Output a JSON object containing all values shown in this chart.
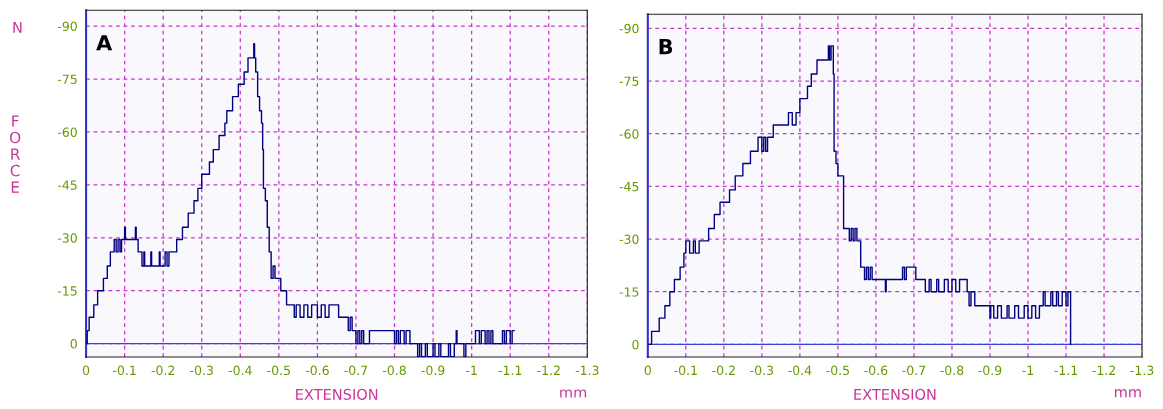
{
  "chart_data": [
    {
      "type": "step",
      "ylabel": "FORCE",
      "xlabel": "EXTENSION",
      "annotations": [
        "A",
        "mm",
        "N"
      ],
      "xlim": [
        0,
        -1.3
      ],
      "ylim": [
        3.8,
        -94.5
      ],
      "xticks": [
        0,
        -0.1,
        -0.2,
        -0.3,
        -0.4,
        -0.5,
        -0.6,
        -0.7,
        -0.8,
        -0.9,
        -1,
        -1.1,
        -1.2,
        -1.3
      ],
      "yticks": [
        0,
        -15,
        -30,
        -45,
        -60,
        -75,
        -90
      ],
      "grid": true,
      "line_style": "solid",
      "ref_lines": [
        {
          "axis": "y",
          "value": 0,
          "label": null,
          "color": "#4040e0"
        }
      ],
      "series": [
        {
          "color": "#000080",
          "x": [
            0,
            -0.003,
            -0.008,
            -0.02,
            -0.03,
            -0.045,
            -0.055,
            -0.063,
            -0.073,
            -0.078,
            -0.083,
            -0.088,
            -0.092,
            -0.1,
            -0.102,
            -0.128,
            -0.13,
            -0.135,
            -0.145,
            -0.15,
            -0.152,
            -0.168,
            -0.17,
            -0.19,
            -0.192,
            -0.205,
            -0.21,
            -0.215,
            -0.235,
            -0.25,
            -0.265,
            -0.28,
            -0.29,
            -0.3,
            -0.32,
            -0.33,
            -0.345,
            -0.36,
            -0.365,
            -0.38,
            -0.395,
            -0.41,
            -0.42,
            -0.435,
            -0.437,
            -0.44,
            -0.445,
            -0.45,
            -0.455,
            -0.458,
            -0.46,
            -0.465,
            -0.47,
            -0.475,
            -0.48,
            -0.485,
            -0.49,
            -0.505,
            -0.52,
            -0.54,
            -0.545,
            -0.555,
            -0.565,
            -0.575,
            -0.585,
            -0.6,
            -0.61,
            -0.62,
            -0.63,
            -0.655,
            -0.68,
            -0.685,
            -0.69,
            -0.7,
            -0.705,
            -0.71,
            -0.715,
            -0.72,
            -0.735,
            -0.8,
            -0.805,
            -0.81,
            -0.815,
            -0.825,
            -0.83,
            -0.84,
            -0.86,
            -0.865,
            -0.87,
            -0.88,
            -0.885,
            -0.9,
            -0.905,
            -0.915,
            -0.92,
            -0.94,
            -0.945,
            -0.955,
            -0.96,
            -0.962,
            -0.98,
            -0.985,
            -1.01,
            -1.02,
            -1.025,
            -1.035,
            -1.04,
            -1.045,
            -1.05,
            -1.055,
            -1.08,
            -1.085,
            -1.09,
            -1.1,
            -1.105,
            -1.11
          ],
          "values": [
            0,
            -3.7,
            -7.5,
            -11,
            -15,
            -18.5,
            -22,
            -26,
            -29.5,
            -26,
            -29.5,
            -26,
            -29.5,
            -33,
            -29.5,
            -33,
            -29.5,
            -26,
            -22,
            -26,
            -22,
            -26,
            -22,
            -26,
            -22,
            -26,
            -22,
            -26,
            -29.5,
            -33,
            -37,
            -40.5,
            -44,
            -48,
            -51.5,
            -55,
            -59,
            -62.5,
            -66,
            -70,
            -73.5,
            -77,
            -81,
            -85,
            -81,
            -77,
            -70,
            -66,
            -62.5,
            -55,
            -44,
            -40.5,
            -33,
            -26,
            -18.5,
            -22,
            -18.5,
            -15,
            -11,
            -7.5,
            -11,
            -7.5,
            -11,
            -7.5,
            -11,
            -7.5,
            -11,
            -7.5,
            -11,
            -7.5,
            -3.7,
            -7.5,
            -3.7,
            0,
            -3.7,
            0,
            -3.7,
            0,
            -3.7,
            0,
            -3.7,
            0,
            -3.7,
            0,
            -3.7,
            0,
            3.7,
            0,
            3.7,
            0,
            3.7,
            0,
            3.7,
            0,
            3.7,
            0,
            3.7,
            0,
            -3.7,
            0,
            3.7,
            0,
            -3.7,
            0,
            -3.7,
            0,
            -3.7,
            0,
            -3.7,
            0,
            -3.7,
            0,
            -3.7,
            0,
            -3.7,
            -3.7
          ]
        }
      ]
    },
    {
      "type": "step",
      "xlabel": "EXTENSION",
      "annotations": [
        "B",
        "mm"
      ],
      "xlim": [
        0,
        -1.3
      ],
      "ylim": [
        3.6,
        -94
      ],
      "xticks": [
        0,
        -0.1,
        -0.2,
        -0.3,
        -0.4,
        -0.5,
        -0.6,
        -0.7,
        -0.8,
        -0.9,
        -1,
        -1.1,
        -1.2,
        -1.3
      ],
      "yticks": [
        0,
        -15,
        -30,
        -45,
        -60,
        -75,
        -90
      ],
      "grid": true,
      "line_style": "solid",
      "ref_lines": [
        {
          "axis": "y",
          "value": 0,
          "label": null,
          "color": "#4040e0"
        }
      ],
      "series": [
        {
          "color": "#000080",
          "x": [
            0,
            -0.01,
            -0.03,
            -0.045,
            -0.058,
            -0.07,
            -0.085,
            -0.095,
            -0.1,
            -0.11,
            -0.12,
            -0.125,
            -0.135,
            -0.16,
            -0.175,
            -0.19,
            -0.215,
            -0.23,
            -0.25,
            -0.27,
            -0.29,
            -0.3,
            -0.305,
            -0.31,
            -0.315,
            -0.33,
            -0.37,
            -0.38,
            -0.39,
            -0.4,
            -0.42,
            -0.43,
            -0.445,
            -0.475,
            -0.478,
            -0.482,
            -0.488,
            -0.49,
            -0.495,
            -0.5,
            -0.515,
            -0.53,
            -0.535,
            -0.54,
            -0.545,
            -0.55,
            -0.56,
            -0.57,
            -0.575,
            -0.58,
            -0.585,
            -0.59,
            -0.625,
            -0.627,
            -0.67,
            -0.675,
            -0.68,
            -0.705,
            -0.73,
            -0.74,
            -0.745,
            -0.76,
            -0.765,
            -0.78,
            -0.79,
            -0.8,
            -0.81,
            -0.82,
            -0.84,
            -0.845,
            -0.85,
            -0.86,
            -0.9,
            -0.902,
            -0.91,
            -0.92,
            -0.93,
            -0.945,
            -0.95,
            -0.965,
            -0.975,
            -0.99,
            -1.0,
            -1.01,
            -1.02,
            -1.03,
            -1.04,
            -1.045,
            -1.06,
            -1.065,
            -1.075,
            -1.08,
            -1.09,
            -1.1,
            -1.105,
            -1.112
          ],
          "values": [
            0,
            -3.7,
            -7.5,
            -11,
            -15,
            -18.5,
            -22,
            -26,
            -29.5,
            -26,
            -29.5,
            -26,
            -29.5,
            -33,
            -37,
            -40.5,
            -44,
            -48,
            -51.5,
            -55,
            -59,
            -55,
            -59,
            -55,
            -59,
            -62.5,
            -66,
            -62.5,
            -66,
            -70,
            -73.5,
            -77,
            -81,
            -85,
            -81,
            -85,
            -77,
            -55,
            -51.5,
            -48,
            -33,
            -29.5,
            -33,
            -29.5,
            -33,
            -29.5,
            -22,
            -18.5,
            -22,
            -18.5,
            -22,
            -18.5,
            -15,
            -18.5,
            -22,
            -18.5,
            -22,
            -18.5,
            -15,
            -18.5,
            -15,
            -18.5,
            -15,
            -18.5,
            -15,
            -18.5,
            -15,
            -18.5,
            -15,
            -11,
            -15,
            -11,
            -7.5,
            -11,
            -7.5,
            -11,
            -7.5,
            -11,
            -7.5,
            -11,
            -7.5,
            -11,
            -7.5,
            -11,
            -7.5,
            -11,
            -15,
            -11,
            -15,
            -11,
            -15,
            -11,
            -15,
            -11,
            -15,
            0
          ]
        }
      ]
    }
  ]
}
